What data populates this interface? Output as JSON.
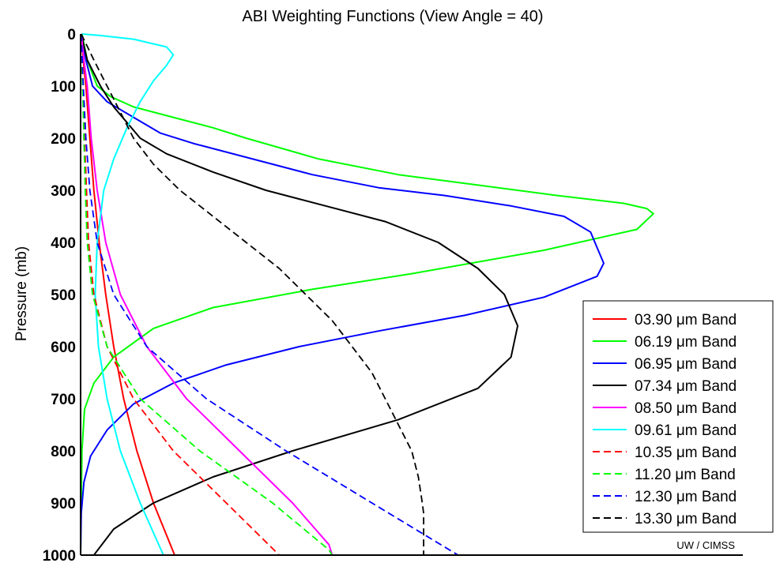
{
  "chart_data": {
    "type": "line",
    "title": "ABI Weighting Functions  (View Angle = 40)",
    "ylabel": "Pressure (mb)",
    "xlabel": "",
    "ylim": [
      0,
      1000
    ],
    "y_inverted": true,
    "xlim": [
      0,
      1
    ],
    "x_ticks_shown": false,
    "grid": false,
    "yticks": [
      "0",
      "100",
      "200",
      "300",
      "400",
      "500",
      "600",
      "700",
      "800",
      "900",
      "1000"
    ],
    "legend_position": "right",
    "credit": "UW / CIMSS",
    "series": [
      {
        "name": "03.90 μm Band",
        "color": "#ff0000",
        "dash": "solid",
        "points": [
          [
            0.001,
            0
          ],
          [
            0.004,
            50
          ],
          [
            0.008,
            100
          ],
          [
            0.014,
            200
          ],
          [
            0.02,
            300
          ],
          [
            0.028,
            400
          ],
          [
            0.038,
            500
          ],
          [
            0.05,
            600
          ],
          [
            0.065,
            700
          ],
          [
            0.085,
            800
          ],
          [
            0.11,
            900
          ],
          [
            0.142,
            1000
          ]
        ]
      },
      {
        "name": "06.19 μm Band",
        "color": "#00ff00",
        "dash": "solid",
        "points": [
          [
            0.002,
            0
          ],
          [
            0.01,
            50
          ],
          [
            0.025,
            100
          ],
          [
            0.045,
            120
          ],
          [
            0.08,
            140
          ],
          [
            0.14,
            160
          ],
          [
            0.2,
            180
          ],
          [
            0.25,
            200
          ],
          [
            0.36,
            240
          ],
          [
            0.48,
            270
          ],
          [
            0.6,
            290
          ],
          [
            0.72,
            310
          ],
          [
            0.82,
            325
          ],
          [
            0.855,
            335
          ],
          [
            0.865,
            345
          ],
          [
            0.84,
            375
          ],
          [
            0.7,
            415
          ],
          [
            0.5,
            460
          ],
          [
            0.35,
            490
          ],
          [
            0.2,
            525
          ],
          [
            0.11,
            565
          ],
          [
            0.05,
            620
          ],
          [
            0.02,
            670
          ],
          [
            0.006,
            720
          ],
          [
            0.002,
            800
          ],
          [
            0.001,
            900
          ],
          [
            0,
            1000
          ]
        ]
      },
      {
        "name": "06.95 μm Band",
        "color": "#0000ff",
        "dash": "solid",
        "points": [
          [
            0.001,
            0
          ],
          [
            0.008,
            50
          ],
          [
            0.018,
            100
          ],
          [
            0.04,
            130
          ],
          [
            0.08,
            160
          ],
          [
            0.12,
            190
          ],
          [
            0.17,
            210
          ],
          [
            0.26,
            240
          ],
          [
            0.35,
            270
          ],
          [
            0.45,
            295
          ],
          [
            0.55,
            310
          ],
          [
            0.65,
            330
          ],
          [
            0.73,
            350
          ],
          [
            0.77,
            380
          ],
          [
            0.78,
            410
          ],
          [
            0.79,
            440
          ],
          [
            0.78,
            465
          ],
          [
            0.7,
            505
          ],
          [
            0.58,
            540
          ],
          [
            0.45,
            570
          ],
          [
            0.33,
            600
          ],
          [
            0.22,
            635
          ],
          [
            0.14,
            670
          ],
          [
            0.08,
            710
          ],
          [
            0.04,
            760
          ],
          [
            0.015,
            810
          ],
          [
            0.005,
            860
          ],
          [
            0.001,
            920
          ],
          [
            0,
            1000
          ]
        ]
      },
      {
        "name": "07.34 μm Band",
        "color": "#000000",
        "dash": "solid",
        "points": [
          [
            0.001,
            0
          ],
          [
            0.01,
            50
          ],
          [
            0.03,
            100
          ],
          [
            0.05,
            140
          ],
          [
            0.07,
            170
          ],
          [
            0.09,
            200
          ],
          [
            0.13,
            230
          ],
          [
            0.2,
            265
          ],
          [
            0.28,
            300
          ],
          [
            0.37,
            330
          ],
          [
            0.46,
            360
          ],
          [
            0.54,
            400
          ],
          [
            0.6,
            450
          ],
          [
            0.64,
            500
          ],
          [
            0.66,
            560
          ],
          [
            0.65,
            620
          ],
          [
            0.6,
            680
          ],
          [
            0.48,
            740
          ],
          [
            0.32,
            800
          ],
          [
            0.2,
            850
          ],
          [
            0.11,
            900
          ],
          [
            0.05,
            950
          ],
          [
            0.02,
            1000
          ]
        ]
      },
      {
        "name": "08.50 μm Band",
        "color": "#ff00ff",
        "dash": "solid",
        "points": [
          [
            0.001,
            0
          ],
          [
            0.005,
            50
          ],
          [
            0.01,
            100
          ],
          [
            0.016,
            200
          ],
          [
            0.025,
            300
          ],
          [
            0.038,
            400
          ],
          [
            0.06,
            500
          ],
          [
            0.1,
            600
          ],
          [
            0.16,
            700
          ],
          [
            0.24,
            800
          ],
          [
            0.32,
            900
          ],
          [
            0.375,
            980
          ],
          [
            0.38,
            1000
          ]
        ]
      },
      {
        "name": "09.61 μm Band",
        "color": "#00ffff",
        "dash": "solid",
        "points": [
          [
            0.002,
            0
          ],
          [
            0.03,
            3
          ],
          [
            0.08,
            10
          ],
          [
            0.13,
            25
          ],
          [
            0.14,
            40
          ],
          [
            0.13,
            60
          ],
          [
            0.11,
            90
          ],
          [
            0.09,
            130
          ],
          [
            0.07,
            180
          ],
          [
            0.05,
            240
          ],
          [
            0.035,
            300
          ],
          [
            0.025,
            400
          ],
          [
            0.022,
            500
          ],
          [
            0.027,
            600
          ],
          [
            0.04,
            700
          ],
          [
            0.06,
            800
          ],
          [
            0.09,
            900
          ],
          [
            0.125,
            1000
          ]
        ]
      },
      {
        "name": "10.35 μm Band",
        "color": "#ff0000",
        "dash": "dashed",
        "points": [
          [
            0.001,
            0
          ],
          [
            0.003,
            100
          ],
          [
            0.006,
            200
          ],
          [
            0.009,
            300
          ],
          [
            0.012,
            400
          ],
          [
            0.02,
            500
          ],
          [
            0.04,
            600
          ],
          [
            0.08,
            700
          ],
          [
            0.14,
            800
          ],
          [
            0.22,
            900
          ],
          [
            0.3,
            1000
          ]
        ]
      },
      {
        "name": "11.20 μm Band",
        "color": "#00ff00",
        "dash": "dashed",
        "points": [
          [
            0.001,
            0
          ],
          [
            0.003,
            100
          ],
          [
            0.005,
            200
          ],
          [
            0.007,
            300
          ],
          [
            0.01,
            400
          ],
          [
            0.018,
            500
          ],
          [
            0.04,
            600
          ],
          [
            0.09,
            700
          ],
          [
            0.18,
            800
          ],
          [
            0.29,
            900
          ],
          [
            0.375,
            990
          ],
          [
            0.38,
            1000
          ]
        ]
      },
      {
        "name": "12.30 μm Band",
        "color": "#0000ff",
        "dash": "dashed",
        "points": [
          [
            0.001,
            0
          ],
          [
            0.004,
            100
          ],
          [
            0.008,
            200
          ],
          [
            0.014,
            300
          ],
          [
            0.025,
            400
          ],
          [
            0.05,
            500
          ],
          [
            0.1,
            600
          ],
          [
            0.19,
            700
          ],
          [
            0.31,
            800
          ],
          [
            0.44,
            900
          ],
          [
            0.57,
            1000
          ]
        ]
      },
      {
        "name": "13.30 μm Band",
        "color": "#000000",
        "dash": "dashed",
        "points": [
          [
            0.001,
            0
          ],
          [
            0.02,
            50
          ],
          [
            0.04,
            100
          ],
          [
            0.06,
            150
          ],
          [
            0.08,
            200
          ],
          [
            0.11,
            250
          ],
          [
            0.15,
            300
          ],
          [
            0.2,
            350
          ],
          [
            0.25,
            400
          ],
          [
            0.3,
            450
          ],
          [
            0.34,
            500
          ],
          [
            0.38,
            550
          ],
          [
            0.41,
            600
          ],
          [
            0.44,
            650
          ],
          [
            0.46,
            700
          ],
          [
            0.48,
            750
          ],
          [
            0.5,
            800
          ],
          [
            0.51,
            850
          ],
          [
            0.516,
            900
          ],
          [
            0.518,
            920
          ],
          [
            0.518,
            1000
          ]
        ]
      }
    ]
  }
}
